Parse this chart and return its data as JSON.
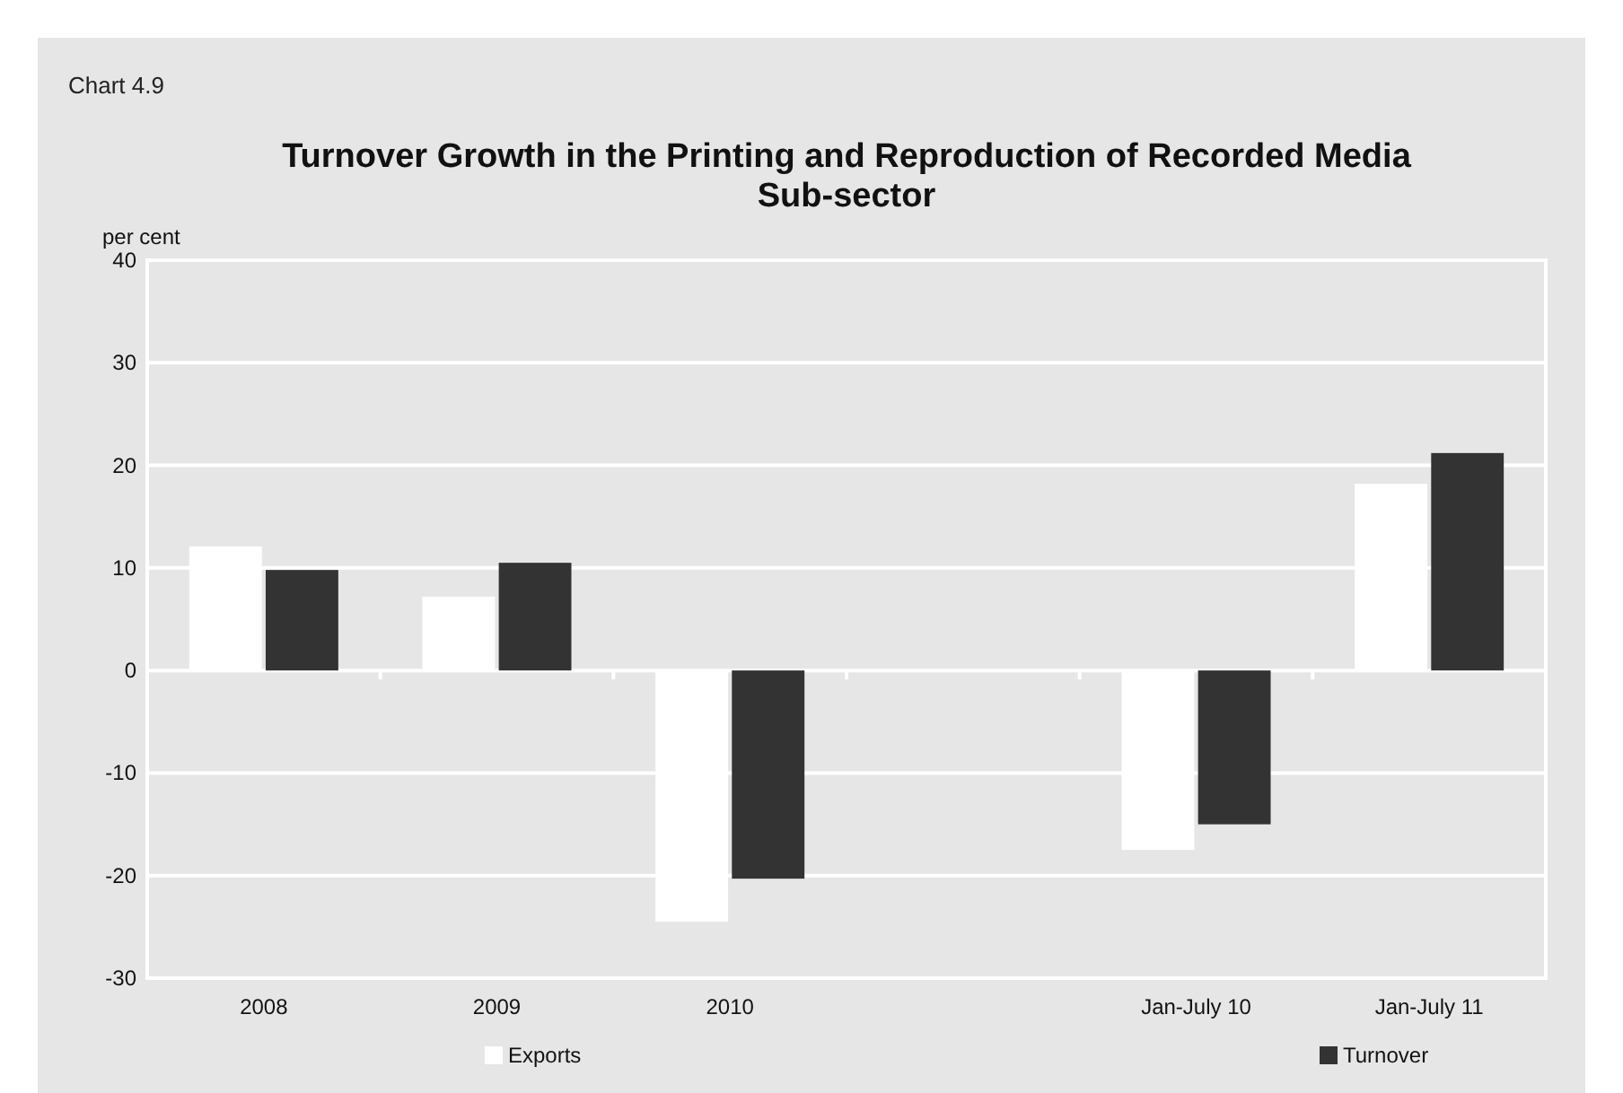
{
  "chart_data": {
    "type": "bar",
    "title": "Turnover Growth in the Printing and Reproduction of Recorded Media Sub-sector",
    "ylabel": "per cent",
    "annotations": [
      "Chart 4.9"
    ],
    "categories": [
      "2008",
      "2009",
      "2010",
      null,
      "Jan-July 10",
      "Jan-July 11"
    ],
    "series": [
      {
        "name": "Exports",
        "color": "#ffffff",
        "values": [
          12.1,
          7.2,
          -24.5,
          null,
          -17.5,
          18.2
        ]
      },
      {
        "name": "Turnover",
        "color": "#333333",
        "values": [
          9.8,
          10.5,
          -20.3,
          null,
          -15,
          21.2
        ]
      }
    ],
    "ylim": [
      -30,
      40
    ],
    "yticks": [
      -30,
      -20,
      -10,
      0,
      10,
      20,
      30,
      40
    ],
    "grid": "y",
    "legend": "bottom"
  }
}
